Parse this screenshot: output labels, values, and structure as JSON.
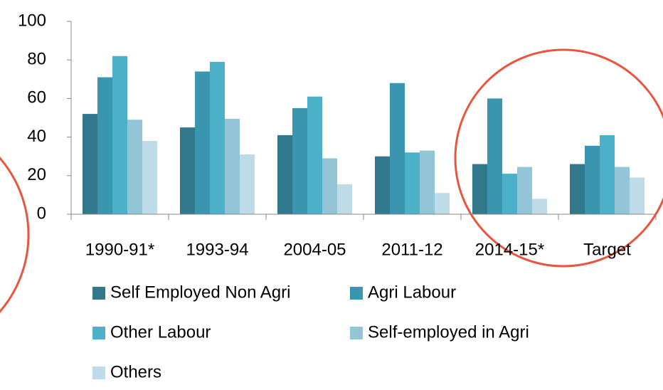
{
  "chart_data": {
    "type": "bar",
    "categories": [
      "1990-91*",
      "1993-94",
      "2004-05",
      "2011-12",
      "2014-15*",
      "Target"
    ],
    "series": [
      {
        "name": "Self Employed Non Agri",
        "color": "#31788c",
        "values": [
          52,
          45,
          41,
          30,
          26,
          26
        ]
      },
      {
        "name": "Agri Labour",
        "color": "#3a95ae",
        "values": [
          71,
          74,
          55,
          68,
          60,
          35.5
        ]
      },
      {
        "name": "Other Labour",
        "color": "#4bb0c8",
        "values": [
          82,
          79,
          61,
          32,
          21,
          41
        ]
      },
      {
        "name": "Self-employed in Agri",
        "color": "#93c5d6",
        "values": [
          49,
          49.5,
          29,
          33,
          24.5,
          24.5
        ]
      },
      {
        "name": "Others",
        "color": "#bedce7",
        "values": [
          38,
          31,
          15.5,
          11,
          8,
          19
        ]
      }
    ],
    "ylim": [
      0,
      100
    ],
    "yticks": [
      0,
      20,
      40,
      60,
      80,
      100
    ],
    "grid": false
  }
}
